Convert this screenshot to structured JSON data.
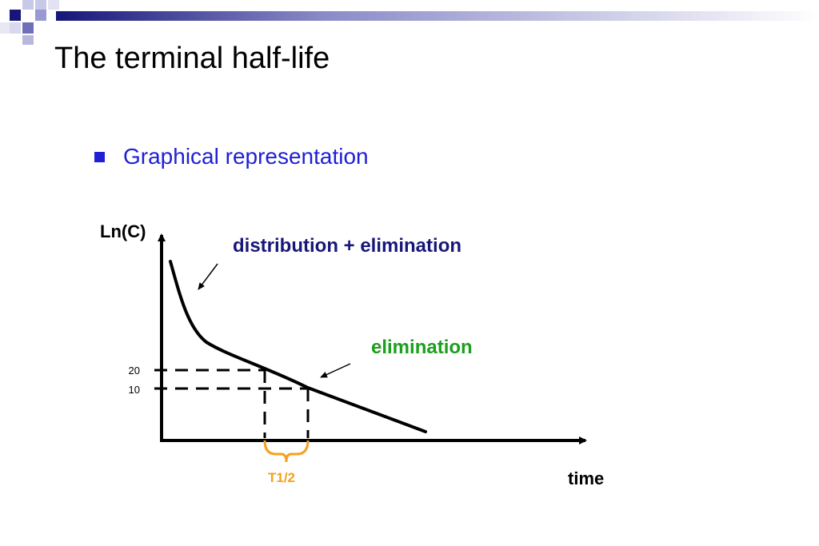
{
  "slide": {
    "title": "The terminal half-life",
    "bullet": "Graphical representation"
  },
  "diagram": {
    "y_axis_label": "Ln(C)",
    "x_axis_label": "time",
    "phase_labels": {
      "distribution": "distribution + elimination",
      "elimination": "elimination"
    },
    "ticks": [
      "20",
      "10"
    ],
    "half_life_label": "T1/2"
  },
  "colors": {
    "bullet": "#1f1fd6",
    "distribution_label": "#17177a",
    "elimination_label": "#1aa01a",
    "half_life": "#f4a21c",
    "band_dark": "#161679",
    "band_light": "#9a9ad2"
  }
}
